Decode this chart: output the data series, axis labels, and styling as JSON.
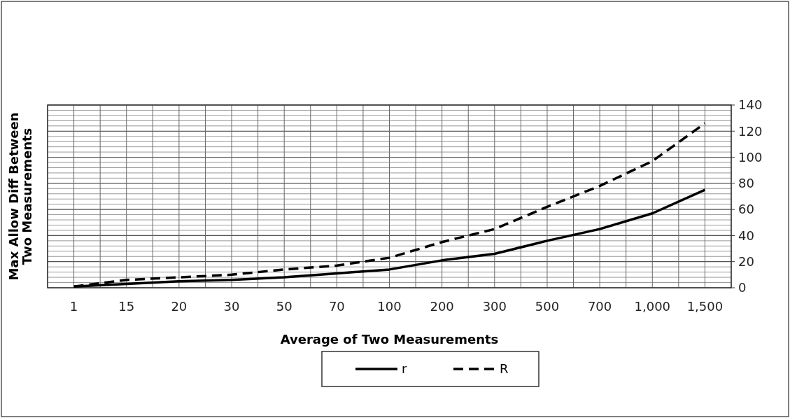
{
  "chart_data": {
    "type": "line",
    "xlabel": "Average of Two Measurements",
    "ylabel": "Max Allow Diff Between Two Measurements",
    "categories": [
      "1",
      "15",
      "20",
      "30",
      "50",
      "70",
      "100",
      "200",
      "300",
      "500",
      "700",
      "1,000",
      "1,500"
    ],
    "series": [
      {
        "name": "r",
        "color": "#000000",
        "line_style": "solid",
        "values": [
          1,
          3,
          5,
          6,
          8,
          11,
          14,
          21,
          26,
          36,
          45,
          57,
          75
        ]
      },
      {
        "name": "R",
        "color": "#000000",
        "line_style": "dashed",
        "values": [
          1,
          6,
          8,
          10,
          14,
          17,
          23,
          35,
          45,
          62,
          78,
          97,
          126
        ]
      }
    ],
    "ylim": [
      0,
      140
    ],
    "yticks": [
      0,
      20,
      40,
      60,
      80,
      100,
      120,
      140
    ],
    "grid": true,
    "legend": "bottom",
    "marker": "none"
  }
}
